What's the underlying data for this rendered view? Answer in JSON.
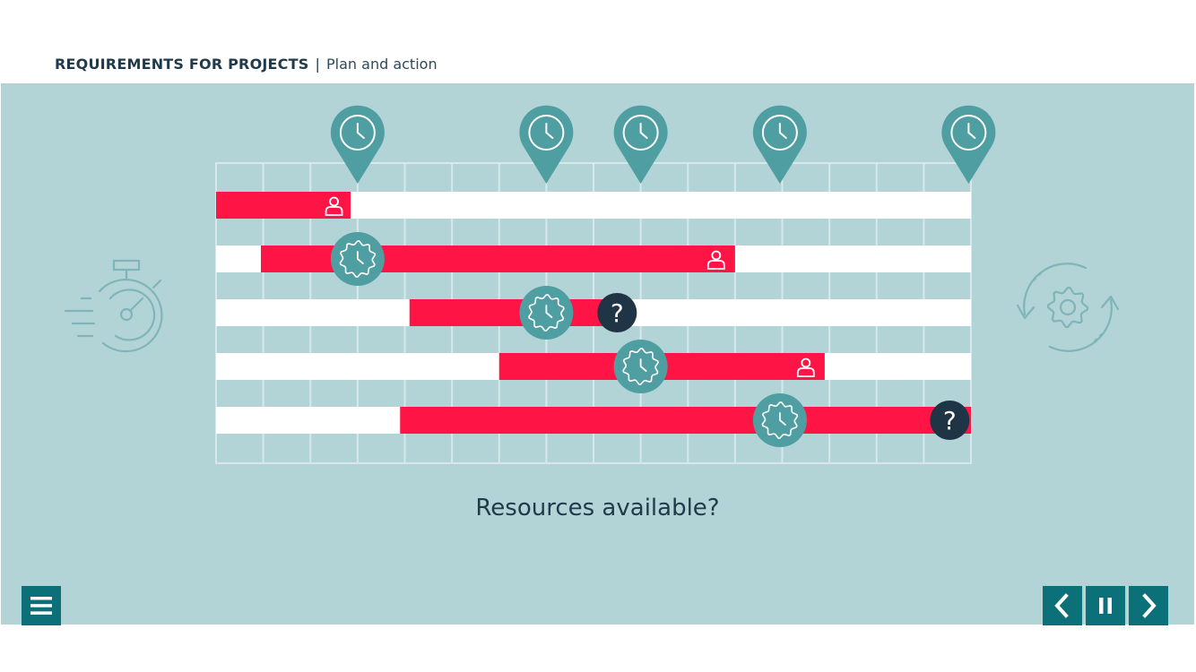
{
  "header": {
    "title": "REQUIREMENTS FOR PROJECTS",
    "separator": "|",
    "subtitle": "Plan and action"
  },
  "question": "Resources available?",
  "colors": {
    "stage_bg": "#b2d4d7",
    "accent_red": "#ff1446",
    "marker_teal": "#4f9ea2",
    "question_dark": "#1f3444",
    "button_teal": "#0b7078"
  },
  "gantt": {
    "columns": 16,
    "rows": [
      {
        "start": 0,
        "end": 2.85,
        "icons": [
          {
            "type": "user-icon",
            "pos": 2.5
          }
        ]
      },
      {
        "start": 0.95,
        "end": 11.0,
        "icons": [
          {
            "type": "gear-clock-icon",
            "pos": 3.0
          },
          {
            "type": "user-icon",
            "pos": 10.6
          }
        ]
      },
      {
        "start": 4.1,
        "end": 8.3,
        "icons": [
          {
            "type": "gear-clock-icon",
            "pos": 7.0
          },
          {
            "type": "question-icon",
            "pos": 8.5
          }
        ]
      },
      {
        "start": 6.0,
        "end": 12.9,
        "icons": [
          {
            "type": "gear-clock-icon",
            "pos": 9.0
          },
          {
            "type": "user-icon",
            "pos": 12.5
          }
        ]
      },
      {
        "start": 3.9,
        "end": 16.0,
        "icons": [
          {
            "type": "gear-clock-icon",
            "pos": 11.95
          },
          {
            "type": "question-icon",
            "pos": 15.55
          }
        ]
      }
    ],
    "milestones": [
      3.0,
      7.0,
      9.0,
      11.95,
      15.95
    ],
    "milestone_icon": "clock-pin-icon"
  },
  "side_icons": {
    "left": "stopwatch-icon",
    "right": "cycle-gear-icon"
  },
  "buttons": {
    "menu": "menu-icon",
    "prev": "chevron-left-icon",
    "pause": "pause-icon",
    "next": "chevron-right-icon"
  }
}
